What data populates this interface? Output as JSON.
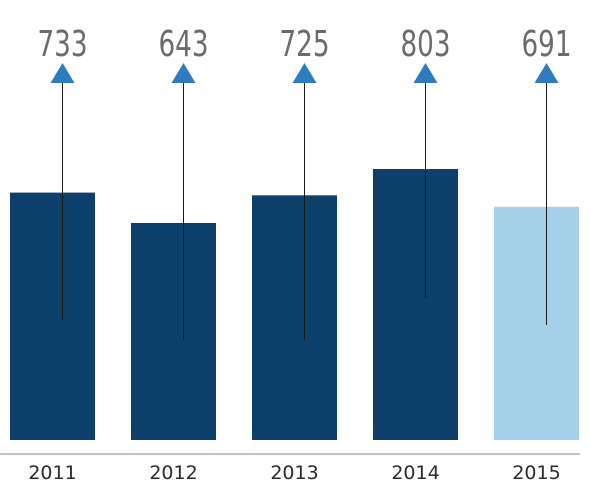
{
  "chart_data": {
    "type": "bar",
    "categories": [
      "2011",
      "2012",
      "2013",
      "2014",
      "2015"
    ],
    "values": [
      733,
      643,
      725,
      803,
      691
    ],
    "value_labels": [
      "733",
      "643",
      "725",
      "803",
      "691"
    ],
    "title": "",
    "xlabel": "",
    "ylabel": "",
    "grid": false,
    "legend": "none",
    "colors": {
      "bar": "#0d406b",
      "highlight_bar": "#a5d0ea",
      "arrow": "#2e7bbf",
      "line": "#1a1a1a",
      "axis": "#8a8a8a"
    },
    "highlight_index": 4
  }
}
